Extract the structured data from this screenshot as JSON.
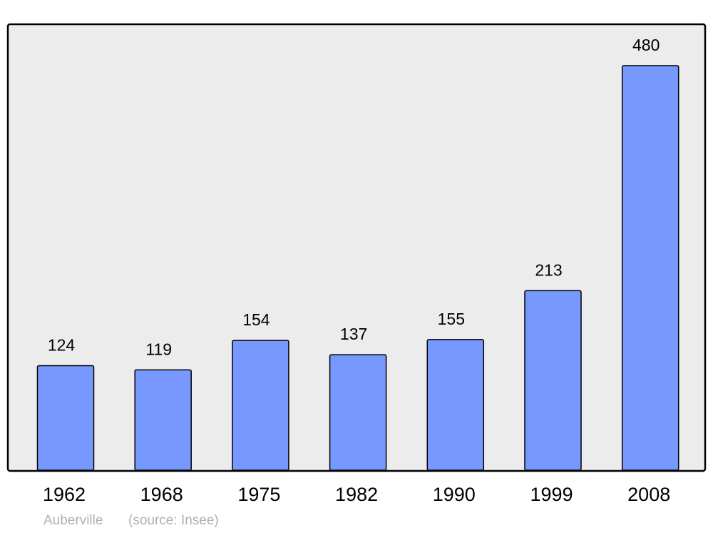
{
  "chart_data": {
    "type": "bar",
    "categories": [
      "1962",
      "1968",
      "1975",
      "1982",
      "1990",
      "1999",
      "2008"
    ],
    "values": [
      124,
      119,
      154,
      137,
      155,
      213,
      480
    ],
    "color": "#7799ff",
    "subtitle": "Auberville",
    "source": "(source: Insee)"
  }
}
